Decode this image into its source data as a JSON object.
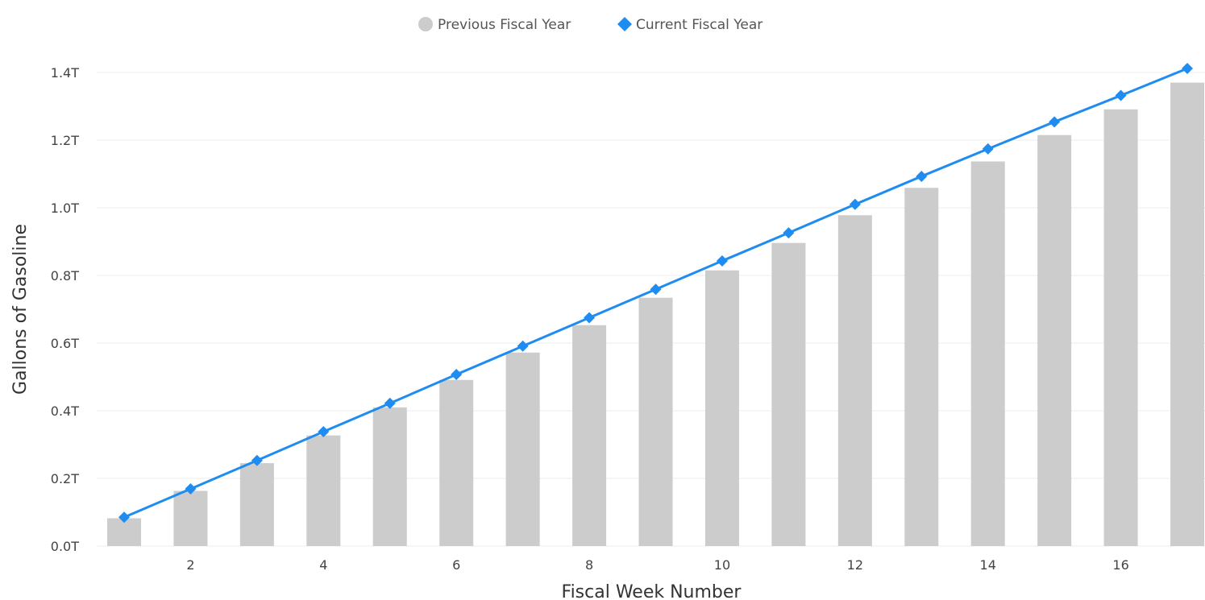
{
  "chart_data": {
    "type": "bar",
    "title": "",
    "xlabel": "Fiscal Week Number",
    "ylabel": "Gallons of Gasoline",
    "x": [
      1,
      2,
      3,
      4,
      5,
      6,
      7,
      8,
      9,
      10,
      11,
      12,
      13,
      14,
      15,
      16,
      17
    ],
    "xticks": [
      "2",
      "4",
      "6",
      "8",
      "10",
      "12",
      "14",
      "16"
    ],
    "xtick_values": [
      2,
      4,
      6,
      8,
      10,
      12,
      14,
      16
    ],
    "yticks": [
      "0.0T",
      "0.2T",
      "0.4T",
      "0.6T",
      "0.8T",
      "1.0T",
      "1.2T",
      "1.4T"
    ],
    "ytick_values": [
      0,
      0.2,
      0.4,
      0.6,
      0.8,
      1.0,
      1.2,
      1.4
    ],
    "ylim": [
      0,
      1.4
    ],
    "y_unit": "T",
    "grid": true,
    "legend_position": "top-center",
    "series": [
      {
        "name": "Previous Fiscal Year",
        "type": "bar",
        "color": "#cccccc",
        "legend_marker": "circle",
        "values": [
          0.082,
          0.163,
          0.245,
          0.327,
          0.41,
          0.491,
          0.572,
          0.653,
          0.734,
          0.815,
          0.896,
          0.978,
          1.059,
          1.137,
          1.215,
          1.291,
          1.37
        ]
      },
      {
        "name": "Current Fiscal Year",
        "type": "line",
        "color": "#1e8cf0",
        "legend_marker": "diamond",
        "values": [
          0.085,
          0.169,
          0.253,
          0.338,
          0.422,
          0.507,
          0.591,
          0.675,
          0.759,
          0.843,
          0.926,
          1.01,
          1.093,
          1.174,
          1.254,
          1.332,
          1.412
        ]
      }
    ]
  }
}
